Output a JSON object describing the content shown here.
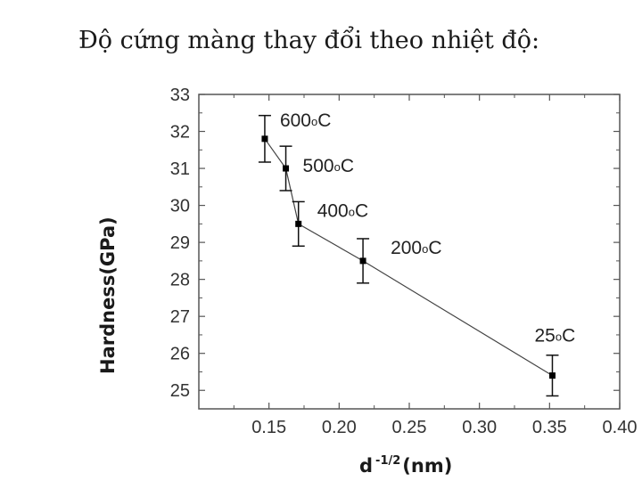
{
  "slide": {
    "title": "Độ cứng màng thay đổi theo nhiệt độ:"
  },
  "chart_data": {
    "type": "scatter",
    "xlabel": {
      "main": "d",
      "sup": "-1/2",
      "unit": "(nm)"
    },
    "ylabel": "Hardness(GPa)",
    "xlim": [
      0.1,
      0.4
    ],
    "ylim": [
      24.5,
      33
    ],
    "xticks": [
      0.15,
      0.2,
      0.25,
      0.3,
      0.35,
      0.4
    ],
    "xtick_labels": [
      "0.15",
      "0.20",
      "0.25",
      "0.30",
      "0.35",
      "0.40"
    ],
    "yticks": [
      25,
      26,
      27,
      28,
      29,
      30,
      31,
      32,
      33
    ],
    "ytick_labels": [
      "25",
      "26",
      "27",
      "28",
      "29",
      "30",
      "31",
      "32",
      "33"
    ],
    "points": [
      {
        "x": 0.147,
        "y": 31.8,
        "err": 0.63,
        "label": "600",
        "deg": "o",
        "unit": "C"
      },
      {
        "x": 0.162,
        "y": 31.0,
        "err": 0.6,
        "label": "500",
        "deg": "o",
        "unit": "C"
      },
      {
        "x": 0.171,
        "y": 29.5,
        "err": 0.6,
        "label": "400",
        "deg": "o",
        "unit": "C"
      },
      {
        "x": 0.217,
        "y": 28.5,
        "err": 0.6,
        "label": "200",
        "deg": "o",
        "unit": "C"
      },
      {
        "x": 0.352,
        "y": 25.4,
        "err": 0.55,
        "label": "25",
        "deg": "o",
        "unit": "C"
      }
    ],
    "connected_line": true,
    "grid": false,
    "colors": {
      "axis": "#555555",
      "marker": "#000000",
      "line": "#444444"
    }
  }
}
